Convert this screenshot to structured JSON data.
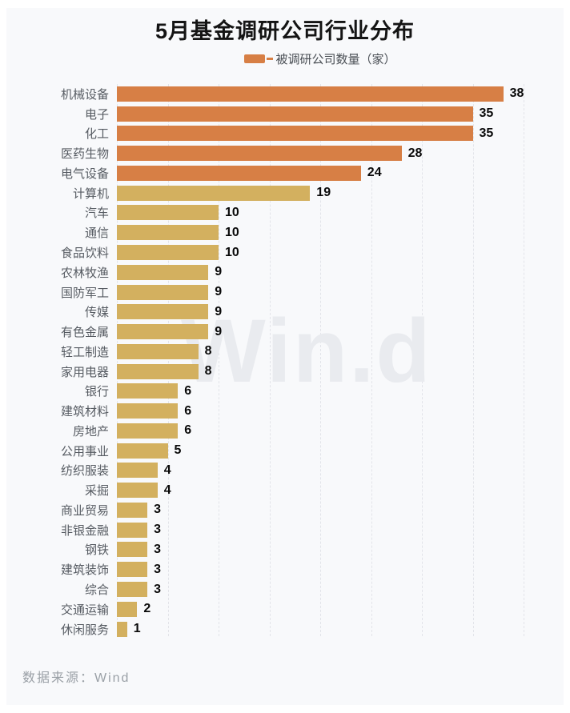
{
  "chart_data": {
    "type": "bar",
    "orientation": "horizontal",
    "title": "5月基金调研公司行业分布",
    "legend_label": "被调研公司数量（家）",
    "legend_position": "top-center",
    "categories": [
      "机械设备",
      "电子",
      "化工",
      "医药生物",
      "电气设备",
      "计算机",
      "汽车",
      "通信",
      "食品饮料",
      "农林牧渔",
      "国防军工",
      "传媒",
      "有色金属",
      "轻工制造",
      "家用电器",
      "银行",
      "建筑材料",
      "房地产",
      "公用事业",
      "纺织服装",
      "采掘",
      "商业贸易",
      "非银金融",
      "钢铁",
      "建筑装饰",
      "综合",
      "交通运输",
      "休闲服务"
    ],
    "values": [
      38,
      35,
      35,
      28,
      24,
      19,
      10,
      10,
      10,
      9,
      9,
      9,
      9,
      8,
      8,
      6,
      6,
      6,
      5,
      4,
      4,
      3,
      3,
      3,
      3,
      3,
      2,
      1
    ],
    "xlim": [
      0,
      40
    ],
    "gridline_step": 5,
    "grid": "vertical dashed gridlines, no x-axis tick labels",
    "value_labels": "bold black number at end of each bar",
    "colors": {
      "high_bar": "#d77f45",
      "low_bar": "#d3b05f",
      "high_threshold": 20,
      "background": "#f8f9fb",
      "gridline": "#e2e4e9",
      "category_text": "#565b62",
      "value_text": "#0a0a0a",
      "title_text": "#141414",
      "footer_text": "#9aa0a6",
      "watermark_text": "#e9ebef"
    }
  },
  "watermark": "Win.d",
  "footer": {
    "source_label": "数据来源：Wind"
  }
}
